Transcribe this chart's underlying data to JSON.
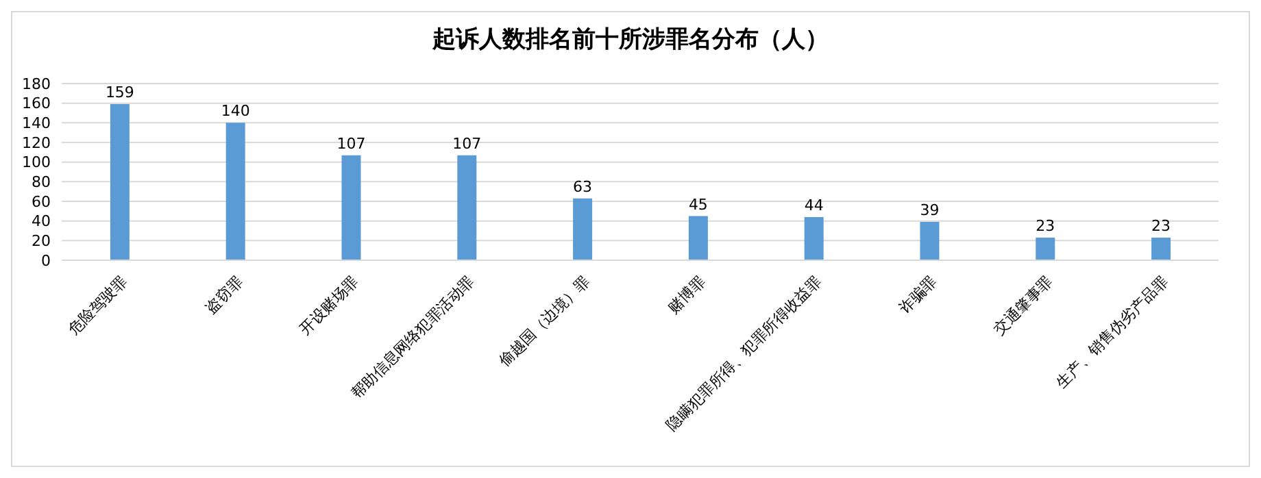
{
  "chart_data": {
    "type": "bar",
    "title": "起诉人数排名前十所涉罪名分布（人）",
    "categories": [
      "危险驾驶罪",
      "盗窃罪",
      "开设赌场罪",
      "帮助信息网络犯罪活动罪",
      "偷越国（边境）罪",
      "赌博罪",
      "隐瞒犯罪所得、犯罪所得收益罪",
      "诈骗罪",
      "交通肇事罪",
      "生产、销售伪劣产品罪"
    ],
    "values": [
      159,
      140,
      107,
      107,
      63,
      45,
      44,
      39,
      23,
      23
    ],
    "color": "#5b9bd5",
    "ylim": [
      0,
      180
    ],
    "yticks": [
      0,
      20,
      40,
      60,
      80,
      100,
      120,
      140,
      160,
      180
    ],
    "grid": "y",
    "data_labels": true
  }
}
